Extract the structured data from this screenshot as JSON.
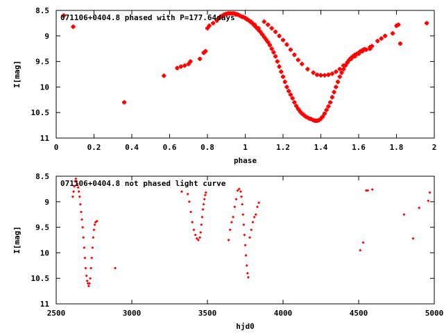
{
  "chart_data": [
    {
      "type": "scatter",
      "title": "071106+0404.8 phased with P=177.64days",
      "xlabel": "phase",
      "ylabel": "I[mag]",
      "xlim": [
        0,
        2
      ],
      "ylim": [
        11,
        8.5
      ],
      "y_inverted": true,
      "xticks": [
        0,
        0.2,
        0.4,
        0.6,
        0.8,
        1,
        1.2,
        1.4,
        1.6,
        1.8,
        2
      ],
      "xtick_labels": [
        "0",
        "0.2",
        "0.4",
        "0.6",
        "0.8",
        "1",
        "1.2",
        "1.4",
        "1.6",
        "1.8",
        "2"
      ],
      "yticks": [
        8.5,
        9,
        9.5,
        10,
        10.5,
        11
      ],
      "ytick_labels": [
        "8.5",
        "9",
        "9.5",
        "10",
        "10.5",
        "11"
      ],
      "grid": false,
      "marker_color": "#ff0000",
      "series": [
        {
          "x": [
            0.04,
            0.09,
            0.36,
            0.57,
            0.64,
            0.66,
            0.68,
            0.7,
            0.71,
            0.76,
            0.78,
            0.79,
            0.8,
            0.81,
            0.83,
            0.85,
            0.86,
            0.87,
            0.88,
            0.89,
            0.9,
            0.91,
            0.92,
            0.93,
            0.94,
            0.95,
            0.96,
            0.97,
            0.98,
            0.99,
            1.0,
            1.01,
            1.02,
            1.03,
            1.04,
            1.05,
            1.06,
            1.07,
            1.08,
            1.09,
            1.1,
            1.11,
            1.12,
            1.13,
            1.14,
            1.15,
            1.16,
            1.17,
            1.18,
            1.19,
            1.2,
            1.21,
            1.22,
            1.23,
            1.24,
            1.25,
            1.26,
            1.27,
            1.28,
            1.29,
            1.3,
            1.31,
            1.32,
            1.33,
            1.34,
            1.35,
            1.36,
            1.37,
            1.38,
            1.39,
            1.4,
            1.41,
            1.42,
            1.43,
            1.44,
            1.45,
            1.46,
            1.47,
            1.48,
            1.49,
            1.5,
            1.51,
            1.52,
            1.53,
            1.54,
            1.55,
            1.56,
            1.57,
            1.58,
            1.59,
            1.6,
            1.61,
            1.62,
            1.63,
            1.66,
            1.67,
            1.7,
            1.72,
            1.74,
            1.78,
            1.8,
            1.81,
            1.82,
            1.96,
            1.1,
            1.12,
            1.14,
            1.16,
            1.18,
            1.2,
            1.22,
            1.24,
            1.26,
            1.28,
            1.3,
            1.33,
            1.36,
            1.38,
            1.4,
            1.42,
            1.44,
            1.46,
            1.48,
            1.5,
            1.52,
            1.54,
            1.56,
            1.58,
            1.6,
            1.62,
            1.64,
            1.66,
            0.95,
            0.97,
            0.99,
            1.01,
            1.03,
            1.05,
            1.07
          ],
          "y": [
            8.6,
            8.82,
            10.3,
            9.78,
            9.63,
            9.6,
            9.58,
            9.55,
            9.5,
            9.45,
            9.33,
            9.3,
            8.85,
            8.8,
            8.75,
            8.7,
            8.65,
            8.62,
            8.6,
            8.58,
            8.57,
            8.56,
            8.56,
            8.56,
            8.56,
            8.57,
            8.58,
            8.6,
            8.62,
            8.63,
            8.65,
            8.68,
            8.7,
            8.73,
            8.76,
            8.8,
            8.84,
            8.88,
            8.92,
            8.97,
            9.02,
            9.07,
            9.12,
            9.18,
            9.25,
            9.32,
            9.4,
            9.5,
            9.6,
            9.7,
            9.8,
            9.9,
            10.0,
            10.08,
            10.15,
            10.22,
            10.3,
            10.37,
            10.43,
            10.48,
            10.52,
            10.55,
            10.58,
            10.6,
            10.62,
            10.63,
            10.65,
            10.66,
            10.66,
            10.65,
            10.62,
            10.58,
            10.52,
            10.45,
            10.38,
            10.3,
            10.2,
            10.1,
            10.0,
            9.9,
            9.8,
            9.72,
            9.65,
            9.58,
            9.52,
            9.47,
            9.43,
            9.4,
            9.37,
            9.35,
            9.33,
            9.3,
            9.28,
            9.26,
            9.22,
            9.2,
            9.1,
            9.05,
            9.0,
            8.95,
            8.8,
            8.78,
            9.15,
            8.75,
            8.72,
            8.78,
            8.85,
            8.92,
            9.0,
            9.08,
            9.17,
            9.27,
            9.37,
            9.47,
            9.55,
            9.65,
            9.72,
            9.76,
            9.77,
            9.77,
            9.76,
            9.74,
            9.7,
            9.65,
            9.58,
            9.52,
            9.45,
            9.4,
            9.35,
            9.3,
            9.27,
            9.25,
            8.58,
            8.6,
            8.63,
            8.67,
            8.72,
            8.78,
            8.85
          ]
        }
      ]
    },
    {
      "type": "scatter",
      "title": "071106+0404.8 not phased light curve",
      "xlabel": "hjd0",
      "ylabel": "I[mag]",
      "xlim": [
        2500,
        5000
      ],
      "ylim": [
        11,
        8.5
      ],
      "y_inverted": true,
      "xticks": [
        2500,
        3000,
        3500,
        4000,
        4500,
        5000
      ],
      "xtick_labels": [
        "2500",
        "3000",
        "3500",
        "4000",
        "4500",
        "5000"
      ],
      "yticks": [
        8.5,
        9,
        9.5,
        10,
        10.5,
        11
      ],
      "ytick_labels": [
        "8.5",
        "9",
        "9.5",
        "10",
        "10.5",
        "11"
      ],
      "grid": false,
      "marker_color": "#ff0000",
      "series": [
        {
          "x": [
            2610,
            2615,
            2620,
            2625,
            2630,
            2635,
            2640,
            2645,
            2650,
            2655,
            2660,
            2665,
            2670,
            2675,
            2680,
            2685,
            2690,
            2695,
            2700,
            2705,
            2710,
            2715,
            2720,
            2725,
            2730,
            2735,
            2740,
            2745,
            2750,
            2755,
            2760,
            2770,
            2890,
            3330,
            3370,
            3380,
            3390,
            3400,
            3410,
            3420,
            3430,
            3440,
            3450,
            3455,
            3460,
            3465,
            3470,
            3475,
            3480,
            3485,
            3490,
            3640,
            3650,
            3660,
            3670,
            3680,
            3690,
            3700,
            3710,
            3720,
            3725,
            3730,
            3735,
            3740,
            3745,
            3750,
            3755,
            3760,
            3765,
            3770,
            3780,
            3790,
            3800,
            3810,
            3820,
            3830,
            3840,
            4510,
            4530,
            4550,
            4560,
            4590,
            4800,
            4860,
            4900,
            4960,
            4970
          ],
          "y": [
            8.9,
            8.8,
            8.7,
            8.6,
            8.55,
            8.6,
            8.65,
            8.72,
            8.8,
            8.9,
            9.05,
            9.2,
            9.35,
            9.5,
            9.7,
            9.9,
            10.1,
            10.3,
            10.45,
            10.55,
            10.6,
            10.65,
            10.6,
            10.5,
            10.3,
            10.1,
            9.9,
            9.7,
            9.55,
            9.45,
            9.4,
            9.38,
            10.3,
            8.8,
            8.85,
            9.0,
            9.2,
            9.4,
            9.55,
            9.65,
            9.72,
            9.75,
            9.7,
            9.6,
            9.45,
            9.3,
            9.15,
            9.05,
            8.95,
            8.87,
            8.82,
            9.75,
            9.55,
            9.4,
            9.3,
            9.1,
            8.95,
            8.78,
            8.75,
            8.8,
            8.9,
            9.05,
            9.25,
            9.45,
            9.65,
            9.85,
            10.05,
            10.25,
            10.4,
            10.48,
            9.7,
            9.55,
            9.4,
            9.3,
            9.25,
            9.1,
            9.02,
            9.95,
            9.8,
            8.78,
            8.78,
            8.76,
            9.25,
            9.72,
            9.12,
            8.98,
            8.82
          ]
        }
      ]
    }
  ]
}
